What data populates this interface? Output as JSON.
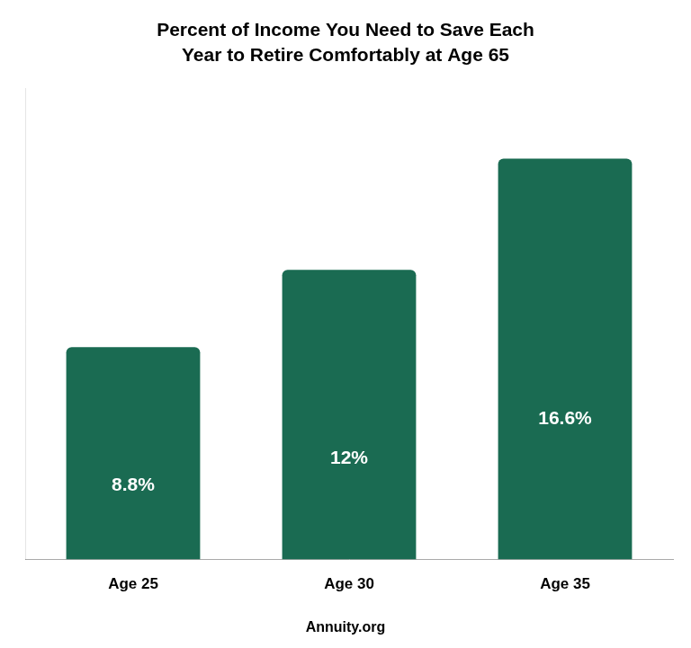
{
  "chart_data": {
    "type": "bar",
    "title": "Percent of Income You Need to Save Each\nYear to Retire Comfortably at Age 65",
    "categories": [
      "Age 25",
      "Age 30",
      "Age 35"
    ],
    "values": [
      8.8,
      12.0,
      16.6
    ],
    "value_labels": [
      "8.8%",
      "12%",
      "16.6%"
    ],
    "data_labels": true,
    "color": "#1a6b52",
    "ylim": [
      0,
      19.5
    ],
    "tick_labels": "x",
    "grid": false,
    "annotations": [
      "Annuity.org"
    ]
  }
}
